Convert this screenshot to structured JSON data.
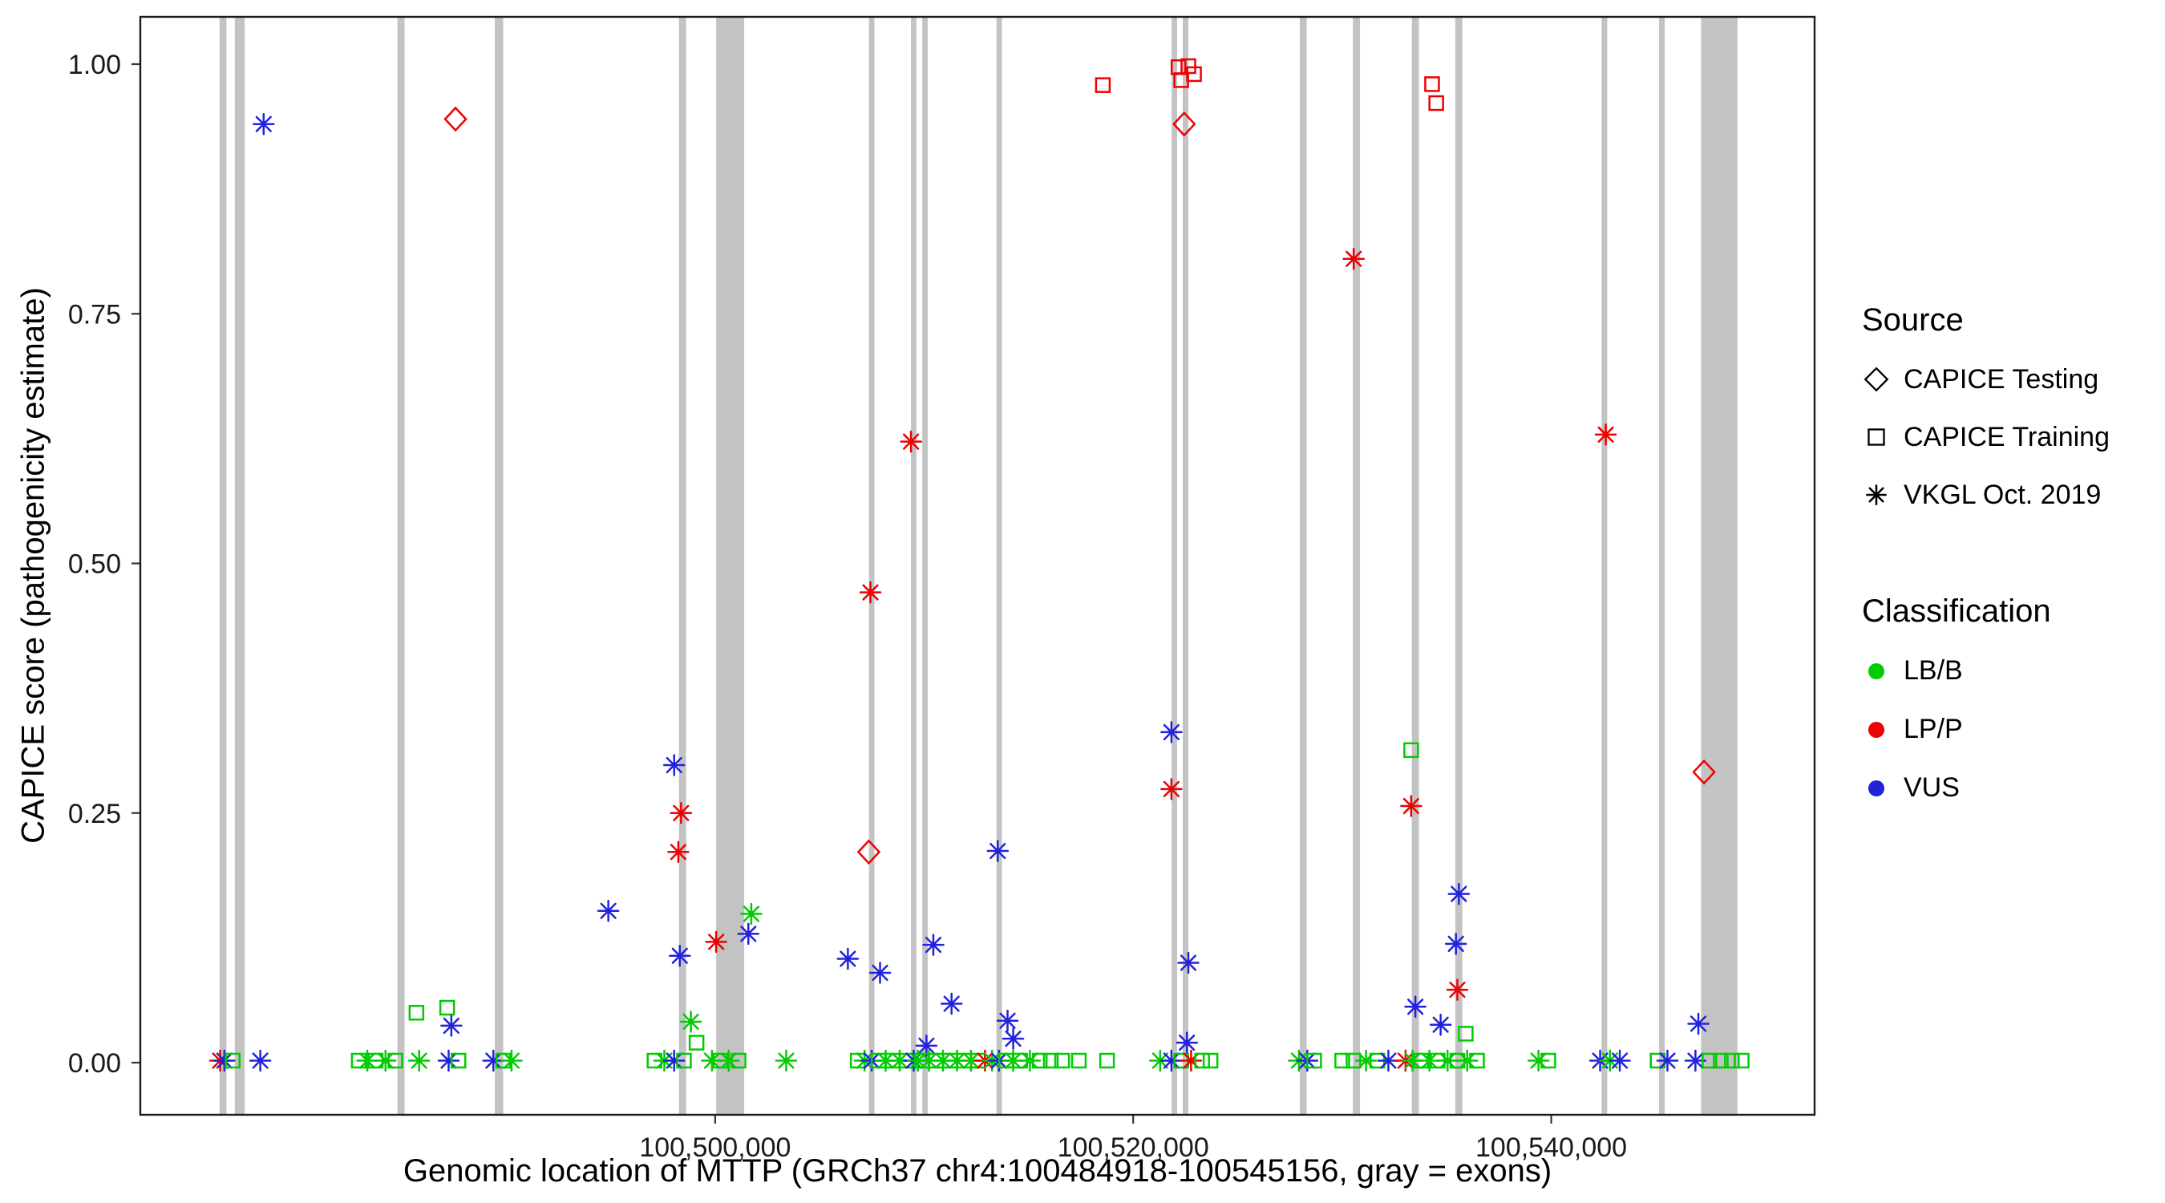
{
  "plot": {
    "background": "#FFFFFF",
    "panel_border": "#1a1a1a"
  },
  "colors": {
    "LB/B": "#00CC00",
    "LP/P": "#EE0000",
    "VUS": "#2222DD",
    "exon": "#C3C3C3",
    "axis_text": "#1a1a1a"
  },
  "axes": {
    "x": {
      "label": "Genomic location of MTTP (GRCh37 chr4:100484918-100545156, gray = exons)",
      "ticks": [
        {
          "value": 100500000,
          "label": "100,500,000"
        },
        {
          "value": 100520000,
          "label": "100,520,000"
        },
        {
          "value": 100540000,
          "label": "100,540,000"
        }
      ]
    },
    "y": {
      "label": "CAPICE score (pathogenicity estimate)",
      "ticks": [
        {
          "value": 0,
          "label": "0.00"
        },
        {
          "value": 0.25,
          "label": "0.25"
        },
        {
          "value": 0.5,
          "label": "0.50"
        },
        {
          "value": 0.75,
          "label": "0.75"
        },
        {
          "value": 1,
          "label": "1.00"
        }
      ]
    }
  },
  "legend": {
    "source": {
      "title": "Source",
      "items": [
        {
          "key": "testing",
          "shape": "diamond",
          "label": "CAPICE Testing"
        },
        {
          "key": "training",
          "shape": "square",
          "label": "CAPICE Training"
        },
        {
          "key": "vkgl",
          "shape": "asterisk",
          "label": "VKGL Oct. 2019"
        }
      ]
    },
    "classification": {
      "title": "Classification",
      "items": [
        {
          "key": "LB/B",
          "label": "LB/B"
        },
        {
          "key": "LP/P",
          "label": "LP/P"
        },
        {
          "key": "VUS",
          "label": "VUS"
        }
      ]
    }
  },
  "chart_data": {
    "type": "scatter",
    "title": "",
    "x_domain": [
      100472500,
      100552600
    ],
    "y_domain": [
      0,
      1
    ],
    "point_format": [
      "genomic_position",
      "capice_score",
      "classification",
      "source"
    ],
    "exons": [
      {
        "start": 100476290,
        "end": 100476620
      },
      {
        "start": 100477020,
        "end": 100477490
      },
      {
        "start": 100484800,
        "end": 100485140
      },
      {
        "start": 100489460,
        "end": 100489860
      },
      {
        "start": 100498270,
        "end": 100498610
      },
      {
        "start": 100500050,
        "end": 100501390
      },
      {
        "start": 100507360,
        "end": 100507620
      },
      {
        "start": 100509370,
        "end": 100509630
      },
      {
        "start": 100509910,
        "end": 100510170
      },
      {
        "start": 100513460,
        "end": 100513720
      },
      {
        "start": 100521840,
        "end": 100522100
      },
      {
        "start": 100522370,
        "end": 100522640
      },
      {
        "start": 100527970,
        "end": 100528300
      },
      {
        "start": 100530510,
        "end": 100530850
      },
      {
        "start": 100533330,
        "end": 100533670
      },
      {
        "start": 100535410,
        "end": 100535750
      },
      {
        "start": 100542410,
        "end": 100542680
      },
      {
        "start": 100545160,
        "end": 100545430
      },
      {
        "start": 100547170,
        "end": 100548910
      }
    ],
    "points": [
      [
        100478400,
        0.94,
        "VUS",
        "vkgl"
      ],
      [
        100487580,
        0.945,
        "LP/P",
        "testing"
      ],
      [
        100485710,
        0.05,
        "LB/B",
        "training"
      ],
      [
        100487180,
        0.055,
        "LB/B",
        "training"
      ],
      [
        100487380,
        0.037,
        "VUS",
        "vkgl"
      ],
      [
        100494890,
        0.152,
        "VUS",
        "vkgl"
      ],
      [
        100498040,
        0.298,
        "VUS",
        "vkgl"
      ],
      [
        100498370,
        0.25,
        "LP/P",
        "vkgl"
      ],
      [
        100498240,
        0.211,
        "LP/P",
        "vkgl"
      ],
      [
        100498310,
        0.107,
        "VUS",
        "vkgl"
      ],
      [
        100498840,
        0.041,
        "LB/B",
        "vkgl"
      ],
      [
        100499110,
        0.02,
        "LB/B",
        "training"
      ],
      [
        100500050,
        0.121,
        "LP/P",
        "vkgl"
      ],
      [
        100501730,
        0.149,
        "LB/B",
        "vkgl"
      ],
      [
        100501590,
        0.129,
        "VUS",
        "vkgl"
      ],
      [
        100506350,
        0.104,
        "VUS",
        "vkgl"
      ],
      [
        100507350,
        0.211,
        "LP/P",
        "testing"
      ],
      [
        100507430,
        0.471,
        "LP/P",
        "vkgl"
      ],
      [
        100507890,
        0.09,
        "VUS",
        "vkgl"
      ],
      [
        100509370,
        0.622,
        "LP/P",
        "vkgl"
      ],
      [
        100510110,
        0.017,
        "VUS",
        "vkgl"
      ],
      [
        100510440,
        0.118,
        "VUS",
        "vkgl"
      ],
      [
        100511310,
        0.059,
        "VUS",
        "vkgl"
      ],
      [
        100513520,
        0.212,
        "VUS",
        "vkgl"
      ],
      [
        100513990,
        0.042,
        "VUS",
        "vkgl"
      ],
      [
        100514260,
        0.024,
        "VUS",
        "vkgl"
      ],
      [
        100518550,
        0.979,
        "LP/P",
        "training"
      ],
      [
        100522170,
        0.997,
        "LP/P",
        "training"
      ],
      [
        100522640,
        0.998,
        "LP/P",
        "training"
      ],
      [
        100522910,
        0.99,
        "LP/P",
        "training"
      ],
      [
        100522300,
        0.984,
        "LP/P",
        "training"
      ],
      [
        100522440,
        0.94,
        "LP/P",
        "testing"
      ],
      [
        100521830,
        0.331,
        "VUS",
        "vkgl"
      ],
      [
        100521830,
        0.274,
        "LP/P",
        "vkgl"
      ],
      [
        100522640,
        0.1,
        "VUS",
        "vkgl"
      ],
      [
        100522570,
        0.02,
        "VUS",
        "vkgl"
      ],
      [
        100530550,
        0.805,
        "LP/P",
        "vkgl"
      ],
      [
        100533300,
        0.313,
        "LB/B",
        "training"
      ],
      [
        100533300,
        0.257,
        "LP/P",
        "vkgl"
      ],
      [
        100534300,
        0.98,
        "LP/P",
        "training"
      ],
      [
        100534500,
        0.961,
        "LP/P",
        "training"
      ],
      [
        100533500,
        0.056,
        "VUS",
        "vkgl"
      ],
      [
        100534710,
        0.038,
        "VUS",
        "vkgl"
      ],
      [
        100535510,
        0.073,
        "LP/P",
        "vkgl"
      ],
      [
        100535580,
        0.169,
        "VUS",
        "vkgl"
      ],
      [
        100535440,
        0.119,
        "VUS",
        "vkgl"
      ],
      [
        100535910,
        0.029,
        "LB/B",
        "training"
      ],
      [
        100542610,
        0.629,
        "LP/P",
        "vkgl"
      ],
      [
        100547310,
        0.291,
        "LP/P",
        "testing"
      ],
      [
        100547040,
        0.039,
        "VUS",
        "vkgl"
      ],
      [
        100476320,
        0.002,
        "LP/P",
        "vkgl"
      ],
      [
        100476520,
        0.002,
        "VUS",
        "vkgl"
      ],
      [
        100476920,
        0.002,
        "LB/B",
        "training"
      ],
      [
        100478240,
        0.002,
        "VUS",
        "vkgl"
      ],
      [
        100482950,
        0.002,
        "LB/B",
        "training"
      ],
      [
        100483360,
        0.002,
        "LB/B",
        "vkgl"
      ],
      [
        100483760,
        0.002,
        "LB/B",
        "training"
      ],
      [
        100484230,
        0.002,
        "LB/B",
        "vkgl"
      ],
      [
        100484700,
        0.002,
        "LB/B",
        "training"
      ],
      [
        100485840,
        0.002,
        "LB/B",
        "vkgl"
      ],
      [
        100487250,
        0.002,
        "VUS",
        "vkgl"
      ],
      [
        100487720,
        0.002,
        "LB/B",
        "training"
      ],
      [
        100489390,
        0.002,
        "VUS",
        "vkgl"
      ],
      [
        100489860,
        0.002,
        "LB/B",
        "training"
      ],
      [
        100490260,
        0.002,
        "LB/B",
        "vkgl"
      ],
      [
        100497100,
        0.002,
        "LB/B",
        "training"
      ],
      [
        100497570,
        0.002,
        "LB/B",
        "vkgl"
      ],
      [
        100498040,
        0.002,
        "VUS",
        "vkgl"
      ],
      [
        100498510,
        0.002,
        "LB/B",
        "training"
      ],
      [
        100499850,
        0.002,
        "LB/B",
        "vkgl"
      ],
      [
        100500250,
        0.002,
        "LB/B",
        "training"
      ],
      [
        100500650,
        0.002,
        "LB/B",
        "vkgl"
      ],
      [
        100501120,
        0.002,
        "LB/B",
        "training"
      ],
      [
        100503400,
        0.002,
        "LB/B",
        "vkgl"
      ],
      [
        100506820,
        0.002,
        "LB/B",
        "training"
      ],
      [
        100507150,
        0.002,
        "LB/B",
        "vkgl"
      ],
      [
        100507490,
        0.002,
        "VUS",
        "vkgl"
      ],
      [
        100507820,
        0.002,
        "LB/B",
        "training"
      ],
      [
        100508160,
        0.002,
        "LB/B",
        "vkgl"
      ],
      [
        100508490,
        0.002,
        "LB/B",
        "training"
      ],
      [
        100508830,
        0.002,
        "LB/B",
        "vkgl"
      ],
      [
        100509160,
        0.002,
        "LB/B",
        "training"
      ],
      [
        100509500,
        0.002,
        "VUS",
        "vkgl"
      ],
      [
        100509700,
        0.002,
        "LB/B",
        "vkgl"
      ],
      [
        100509900,
        0.002,
        "LB/B",
        "training"
      ],
      [
        100510230,
        0.002,
        "LB/B",
        "vkgl"
      ],
      [
        100510570,
        0.002,
        "LB/B",
        "training"
      ],
      [
        100510900,
        0.002,
        "LB/B",
        "vkgl"
      ],
      [
        100511240,
        0.002,
        "LB/B",
        "training"
      ],
      [
        100511570,
        0.002,
        "LB/B",
        "vkgl"
      ],
      [
        100511910,
        0.002,
        "LB/B",
        "training"
      ],
      [
        100512240,
        0.002,
        "LB/B",
        "vkgl"
      ],
      [
        100512580,
        0.002,
        "LB/B",
        "training"
      ],
      [
        100512910,
        0.002,
        "LP/P",
        "vkgl"
      ],
      [
        100513250,
        0.002,
        "LB/B",
        "vkgl"
      ],
      [
        100513580,
        0.002,
        "VUS",
        "vkgl"
      ],
      [
        100513920,
        0.002,
        "LB/B",
        "training"
      ],
      [
        100514260,
        0.002,
        "LB/B",
        "vkgl"
      ],
      [
        100514590,
        0.002,
        "LB/B",
        "training"
      ],
      [
        100515060,
        0.002,
        "LB/B",
        "vkgl"
      ],
      [
        100515530,
        0.002,
        "LB/B",
        "training"
      ],
      [
        100516060,
        0.002,
        "LB/B",
        "training"
      ],
      [
        100516600,
        0.002,
        "LB/B",
        "training"
      ],
      [
        100517400,
        0.002,
        "LB/B",
        "training"
      ],
      [
        100518750,
        0.002,
        "LB/B",
        "training"
      ],
      [
        100521290,
        0.002,
        "LB/B",
        "vkgl"
      ],
      [
        100521830,
        0.002,
        "VUS",
        "vkgl"
      ],
      [
        100522300,
        0.002,
        "LB/B",
        "training"
      ],
      [
        100522770,
        0.002,
        "LP/P",
        "vkgl"
      ],
      [
        100523300,
        0.002,
        "LB/B",
        "training"
      ],
      [
        100523700,
        0.002,
        "LB/B",
        "training"
      ],
      [
        100527930,
        0.002,
        "LB/B",
        "vkgl"
      ],
      [
        100528330,
        0.002,
        "VUS",
        "vkgl"
      ],
      [
        100528660,
        0.002,
        "LB/B",
        "training"
      ],
      [
        100530000,
        0.002,
        "LB/B",
        "training"
      ],
      [
        100530540,
        0.002,
        "LB/B",
        "training"
      ],
      [
        100531140,
        0.002,
        "LB/B",
        "vkgl"
      ],
      [
        100531680,
        0.002,
        "LB/B",
        "training"
      ],
      [
        100532210,
        0.002,
        "VUS",
        "vkgl"
      ],
      [
        100533030,
        0.002,
        "LP/P",
        "vkgl"
      ],
      [
        100533360,
        0.002,
        "LB/B",
        "vkgl"
      ],
      [
        100533770,
        0.002,
        "LB/B",
        "training"
      ],
      [
        100534170,
        0.002,
        "LB/B",
        "vkgl"
      ],
      [
        100534570,
        0.002,
        "LB/B",
        "training"
      ],
      [
        100535040,
        0.002,
        "LB/B",
        "vkgl"
      ],
      [
        100535510,
        0.002,
        "LB/B",
        "training"
      ],
      [
        100535980,
        0.002,
        "LB/B",
        "vkgl"
      ],
      [
        100536450,
        0.002,
        "LB/B",
        "training"
      ],
      [
        100539390,
        0.002,
        "LB/B",
        "vkgl"
      ],
      [
        100539860,
        0.002,
        "LB/B",
        "training"
      ],
      [
        100542340,
        0.002,
        "VUS",
        "vkgl"
      ],
      [
        100542810,
        0.002,
        "LB/B",
        "vkgl"
      ],
      [
        100543280,
        0.002,
        "VUS",
        "vkgl"
      ],
      [
        100545090,
        0.002,
        "LB/B",
        "training"
      ],
      [
        100545560,
        0.002,
        "VUS",
        "vkgl"
      ],
      [
        100546900,
        0.002,
        "VUS",
        "vkgl"
      ],
      [
        100547570,
        0.002,
        "LB/B",
        "training"
      ],
      [
        100548110,
        0.002,
        "LB/B",
        "training"
      ],
      [
        100548640,
        0.002,
        "LB/B",
        "training"
      ],
      [
        100549110,
        0.002,
        "LB/B",
        "training"
      ]
    ]
  }
}
